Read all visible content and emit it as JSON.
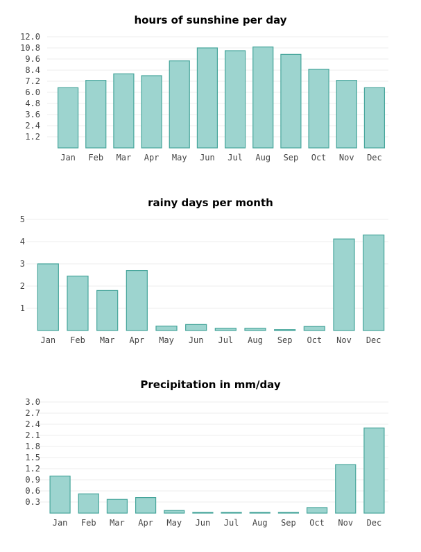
{
  "chart_data": [
    {
      "type": "bar",
      "title": "hours of sunshine per day",
      "categories": [
        "Jan",
        "Feb",
        "Mar",
        "Apr",
        "May",
        "Jun",
        "Jul",
        "Aug",
        "Sep",
        "Oct",
        "Nov",
        "Dec"
      ],
      "values": [
        6.5,
        7.3,
        8.0,
        7.8,
        9.4,
        10.8,
        10.5,
        10.9,
        10.1,
        8.5,
        7.3,
        6.5
      ],
      "yticks": [
        "12.0",
        "10.8",
        "9.6",
        "8.4",
        "7.2",
        "6.0",
        "4.8",
        "3.6",
        "2.4",
        "1.2"
      ],
      "ylim": [
        0,
        12
      ],
      "xlabel": "",
      "ylabel": ""
    },
    {
      "type": "bar",
      "title": "rainy days per month",
      "categories": [
        "Jan",
        "Feb",
        "Mar",
        "Apr",
        "May",
        "Jun",
        "Jul",
        "Aug",
        "Sep",
        "Oct",
        "Nov",
        "Dec"
      ],
      "values": [
        3.0,
        2.45,
        1.8,
        2.7,
        0.2,
        0.27,
        0.1,
        0.1,
        0.04,
        0.18,
        4.12,
        4.3
      ],
      "yticks": [
        "5",
        "4",
        "3",
        "2",
        "1"
      ],
      "ylim": [
        0,
        5
      ],
      "xlabel": "",
      "ylabel": ""
    },
    {
      "type": "bar",
      "title": "Precipitation in mm/day",
      "categories": [
        "Jan",
        "Feb",
        "Mar",
        "Apr",
        "May",
        "Jun",
        "Jul",
        "Aug",
        "Sep",
        "Oct",
        "Nov",
        "Dec"
      ],
      "values": [
        1.0,
        0.52,
        0.37,
        0.42,
        0.07,
        0.02,
        0.02,
        0.02,
        0.02,
        0.15,
        1.31,
        2.3
      ],
      "yticks": [
        "3.0",
        "2.7",
        "2.4",
        "2.1",
        "1.8",
        "1.5",
        "1.2",
        "0.9",
        "0.6",
        "0.3"
      ],
      "ylim": [
        0,
        3
      ],
      "xlabel": "",
      "ylabel": ""
    }
  ]
}
